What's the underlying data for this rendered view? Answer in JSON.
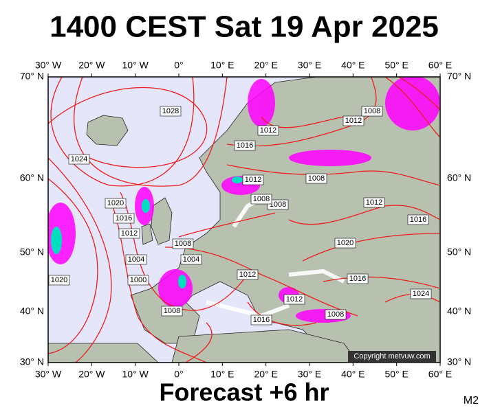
{
  "title": "1400 CEST Sat 19 Apr 2025",
  "subtitle": "Forecast +6 hr",
  "model": "M2",
  "copyright": "Copyright metvuw.com",
  "longitude_labels": [
    "30° W",
    "20° W",
    "10° W",
    "0°",
    "10° E",
    "20° E",
    "30° E",
    "40° E",
    "50° E",
    "60° E"
  ],
  "latitude_labels": [
    "70° N",
    "60° N",
    "50° N",
    "40° N",
    "30° N"
  ],
  "isobar_labels": [
    "1028",
    "1024",
    "1020",
    "1016",
    "1012",
    "1004",
    "1000",
    "1008",
    "1008",
    "1004",
    "1012",
    "1012",
    "1016",
    "1008",
    "1016",
    "1020",
    "1024",
    "1016",
    "1012",
    "1008",
    "1008",
    "1008",
    "1012",
    "1016",
    "1012",
    "1012",
    "1008",
    "1020"
  ]
}
